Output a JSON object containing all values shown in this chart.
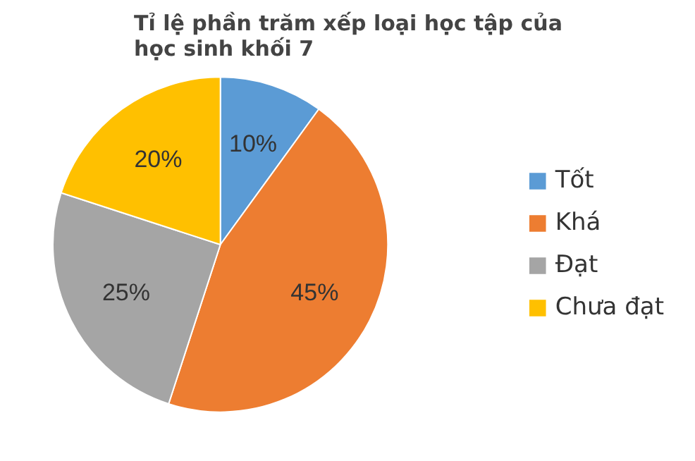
{
  "chart_data": {
    "type": "pie",
    "title": "Tỉ lệ phần trăm xếp loại học tập của học sinh khối 7",
    "categories": [
      "Tốt",
      "Khá",
      "Đạt",
      "Chưa đạt"
    ],
    "values": [
      10,
      45,
      25,
      20
    ],
    "colors": [
      "#5b9bd5",
      "#ed7d31",
      "#a5a5a5",
      "#ffc000"
    ],
    "value_labels": [
      "10%",
      "45%",
      "25%",
      "20%"
    ],
    "legend": "right"
  }
}
